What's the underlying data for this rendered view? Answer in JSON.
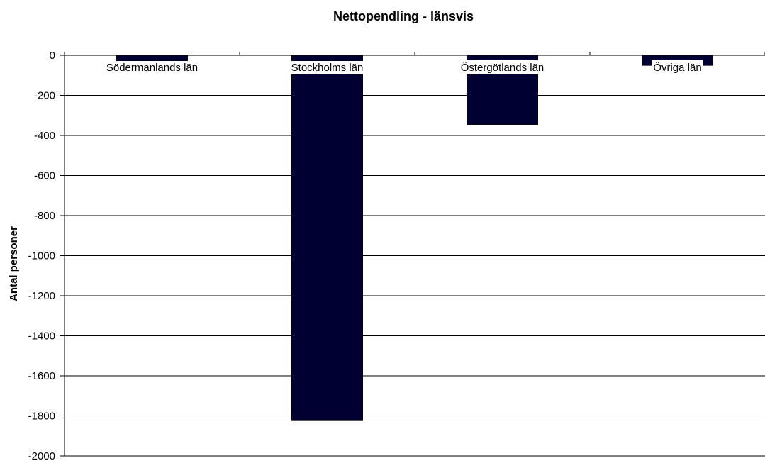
{
  "chart_data": {
    "type": "bar",
    "title": "Nettopendling - länsvis",
    "xlabel": "",
    "ylabel": "Antal personer",
    "categories": [
      "Södermanlands län",
      "Stockholms län",
      "Östergötlands län",
      "Övriga län"
    ],
    "values": [
      -35,
      -1820,
      -345,
      -50
    ],
    "ylim": [
      -2000,
      0
    ],
    "yticks": [
      0,
      -200,
      -400,
      -600,
      -800,
      -1000,
      -1200,
      -1400,
      -1600,
      -1800,
      -2000
    ],
    "grid": true,
    "legend": "none",
    "colors": {
      "bar": "#000033",
      "bar_edge": "#000000",
      "grid": "#000000",
      "axis": "#000000"
    }
  }
}
